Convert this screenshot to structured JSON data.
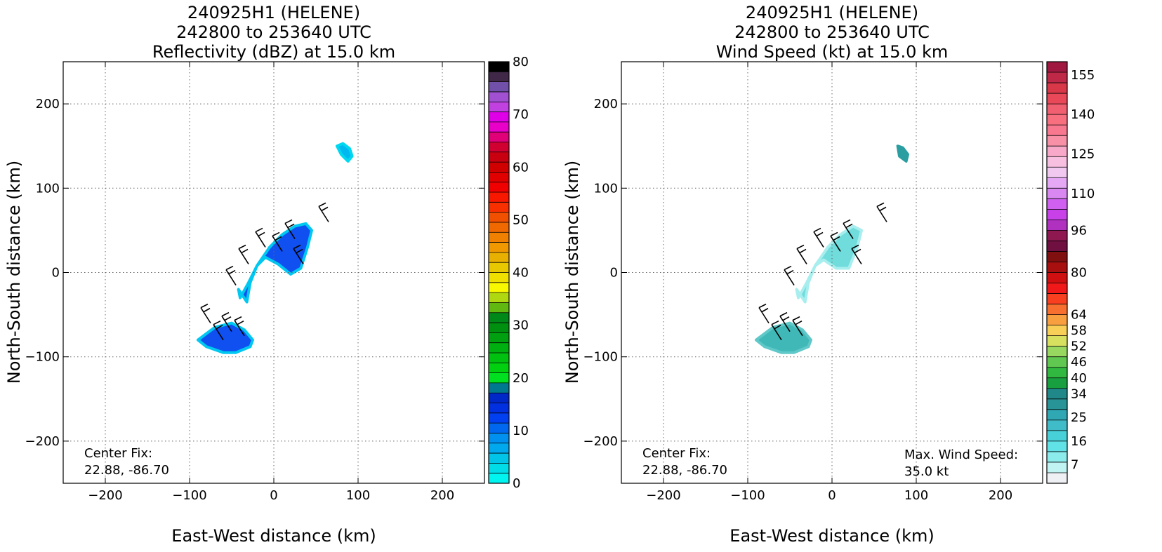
{
  "chart_data": [
    {
      "type": "heatmap",
      "title_lines": [
        "240925H1 (HELENE)",
        "242800 to 253640 UTC",
        "Reflectivity (dBZ) at 15.0 km"
      ],
      "xlabel": "East-West distance (km)",
      "ylabel": "North-South distance (km)",
      "xlim": [
        -250,
        250
      ],
      "ylim": [
        -250,
        250
      ],
      "xticks": [
        -200,
        -100,
        0,
        100,
        200
      ],
      "yticks": [
        -200,
        -100,
        0,
        100,
        200
      ],
      "xtick_labels": [
        "−200",
        "−100",
        "0",
        "100",
        "200"
      ],
      "ytick_labels": [
        "−200",
        "−100",
        "0",
        "100",
        "200"
      ],
      "grid": true,
      "annotation": [
        "Center Fix:",
        "22.88, -86.70"
      ],
      "colorbar": {
        "min": 0,
        "max": 80,
        "tick_values": [
          0,
          10,
          20,
          30,
          40,
          50,
          60,
          70,
          80
        ],
        "tick_labels": [
          "0",
          "10",
          "20",
          "30",
          "40",
          "50",
          "60",
          "70",
          "80"
        ],
        "colors": [
          "#00f5f0",
          "#00dde8",
          "#00c4e8",
          "#00a8ee",
          "#0090f0",
          "#0068f0",
          "#0040f0",
          "#0030e0",
          "#0028c8",
          "#007890",
          "#00e020",
          "#00d010",
          "#00c010",
          "#00b010",
          "#00a010",
          "#009010",
          "#008818",
          "#60b810",
          "#b0d810",
          "#f8f800",
          "#f0e000",
          "#e8c800",
          "#e8b000",
          "#f09800",
          "#f08000",
          "#f06800",
          "#f05000",
          "#f83000",
          "#f81800",
          "#f00000",
          "#e00000",
          "#d00000",
          "#c80010",
          "#d00030",
          "#e00078",
          "#e800c8",
          "#e000e8",
          "#c040e0",
          "#a050d0",
          "#7050a8",
          "#402848",
          "#000000"
        ]
      },
      "regions": [
        {
          "label": "main-band",
          "x": [
            -40,
            -30,
            -20,
            -5,
            10,
            25,
            38,
            45,
            40,
            32,
            20,
            5,
            -10,
            -20,
            -28,
            -32,
            -42
          ],
          "y": [
            -30,
            -12,
            8,
            30,
            45,
            55,
            58,
            50,
            30,
            5,
            -2,
            10,
            18,
            8,
            -12,
            -35,
            -20
          ],
          "color": "#1050f0",
          "outline": "#00c8f0"
        },
        {
          "label": "southwest-band",
          "x": [
            -90,
            -70,
            -50,
            -35,
            -25,
            -28,
            -45,
            -60,
            -80
          ],
          "y": [
            -80,
            -65,
            -60,
            -68,
            -80,
            -88,
            -95,
            -95,
            -88
          ],
          "color": "#1050f0",
          "outline": "#00c8f0"
        },
        {
          "label": "north-cell",
          "x": [
            75,
            82,
            90,
            93,
            88,
            80
          ],
          "y": [
            150,
            153,
            147,
            138,
            132,
            140
          ],
          "color": "#00b8f0",
          "outline": "#00d8f0"
        }
      ],
      "barbs": [
        {
          "x": -45,
          "y": -15
        },
        {
          "x": -30,
          "y": 10
        },
        {
          "x": -10,
          "y": 30
        },
        {
          "x": 10,
          "y": 25
        },
        {
          "x": 25,
          "y": 40
        },
        {
          "x": 35,
          "y": 10
        },
        {
          "x": 65,
          "y": 60
        },
        {
          "x": -75,
          "y": -60
        },
        {
          "x": -60,
          "y": -80
        },
        {
          "x": -50,
          "y": -70
        },
        {
          "x": -35,
          "y": -75
        }
      ]
    },
    {
      "type": "heatmap",
      "title_lines": [
        "240925H1 (HELENE)",
        "242800 to 253640 UTC",
        "Wind Speed (kt) at 15.0 km"
      ],
      "xlabel": "East-West distance (km)",
      "ylabel": "North-South distance (km)",
      "xlim": [
        -250,
        250
      ],
      "ylim": [
        -250,
        250
      ],
      "xticks": [
        -200,
        -100,
        0,
        100,
        200
      ],
      "yticks": [
        -200,
        -100,
        0,
        100,
        200
      ],
      "xtick_labels": [
        "−200",
        "−100",
        "0",
        "100",
        "200"
      ],
      "ytick_labels": [
        "−200",
        "−100",
        "0",
        "100",
        "200"
      ],
      "grid": true,
      "annotation": [
        "Center Fix:",
        "22.88, -86.70"
      ],
      "annotation_right": [
        "Max. Wind Speed:",
        "35.0 kt"
      ],
      "colorbar": {
        "min": 0,
        "max": 160,
        "tick_values": [
          7,
          16,
          25,
          34,
          40,
          46,
          52,
          58,
          64,
          80,
          96,
          110,
          125,
          140,
          155
        ],
        "tick_labels": [
          "7",
          "16",
          "25",
          "34",
          "40",
          "46",
          "52",
          "58",
          "64",
          "80",
          "96",
          "110",
          "125",
          "140",
          "155"
        ],
        "colors": [
          "#eef0f4",
          "#bff4f2",
          "#8cecec",
          "#60e2e6",
          "#48d0d8",
          "#40bcc8",
          "#30a8b4",
          "#289498",
          "#208888",
          "#18a040",
          "#30b840",
          "#60c850",
          "#98d860",
          "#d8e060",
          "#f8d058",
          "#f8a040",
          "#f87030",
          "#f84020",
          "#f01818",
          "#d01010",
          "#a81010",
          "#801010",
          "#701040",
          "#901850",
          "#b030c0",
          "#c840e8",
          "#d060f0",
          "#d888f0",
          "#e4a8f4",
          "#f0c8f0",
          "#f8c0e0",
          "#f8a8c8",
          "#f890a8",
          "#f87890",
          "#f87080",
          "#f06070",
          "#e84858",
          "#d83848",
          "#c02848",
          "#a01840"
        ]
      },
      "regions": [
        {
          "label": "main-band",
          "x": [
            -40,
            -30,
            -20,
            -5,
            10,
            25,
            35,
            30,
            20,
            5,
            -10,
            -20,
            -28,
            -32,
            -42
          ],
          "y": [
            -30,
            -12,
            8,
            30,
            45,
            55,
            50,
            30,
            5,
            5,
            15,
            8,
            -12,
            -35,
            -20
          ],
          "color": "#70dcdc",
          "outline": "#a8eeee"
        },
        {
          "label": "southwest-band",
          "x": [
            -90,
            -70,
            -50,
            -35,
            -25,
            -28,
            -45,
            -60,
            -80
          ],
          "y": [
            -80,
            -65,
            -60,
            -68,
            -80,
            -88,
            -95,
            -95,
            -88
          ],
          "color": "#40b8b8",
          "outline": "#60c8c8"
        },
        {
          "label": "north-cell",
          "x": [
            78,
            84,
            90,
            88,
            80
          ],
          "y": [
            150,
            148,
            140,
            132,
            138
          ],
          "color": "#2a9ea0",
          "outline": "#2a9ea0"
        }
      ],
      "barbs": [
        {
          "x": -45,
          "y": -15
        },
        {
          "x": -30,
          "y": 10
        },
        {
          "x": -10,
          "y": 30
        },
        {
          "x": 10,
          "y": 25
        },
        {
          "x": 25,
          "y": 40
        },
        {
          "x": 35,
          "y": 10
        },
        {
          "x": 65,
          "y": 60
        },
        {
          "x": -75,
          "y": -60
        },
        {
          "x": -60,
          "y": -80
        },
        {
          "x": -50,
          "y": -70
        },
        {
          "x": -35,
          "y": -75
        }
      ]
    }
  ]
}
